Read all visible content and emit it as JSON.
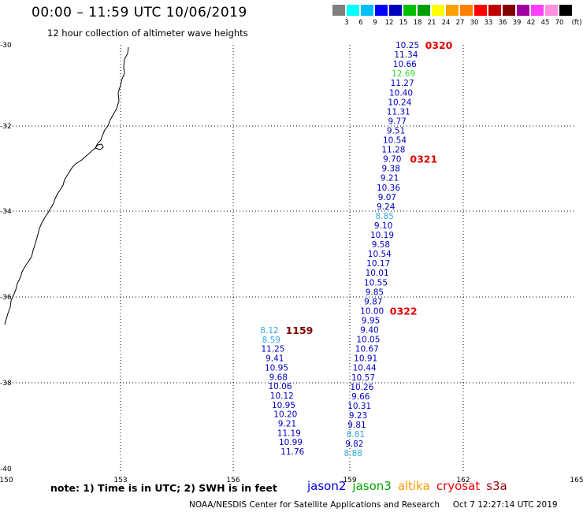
{
  "header": {
    "title": "00:00 – 11:59 UTC 10/06/2019",
    "subtitle": "12 hour collection of altimeter wave heights"
  },
  "legend": {
    "unit": "(ft)",
    "colors": [
      "#808080",
      "#00ffff",
      "#00bfff",
      "#0000ff",
      "#0000c0",
      "#00c000",
      "#00a000",
      "#ffff00",
      "#ffa000",
      "#ff8000",
      "#ff0000",
      "#c00000",
      "#800000",
      "#a000a0",
      "#ff40ff",
      "#ff90e0",
      "#000000"
    ],
    "labels": [
      "3",
      "6",
      "9",
      "12",
      "15",
      "18",
      "21",
      "24",
      "27",
      "30",
      "33",
      "36",
      "39",
      "42",
      "45",
      "70"
    ]
  },
  "axes": {
    "y_labels": [
      "-30",
      "-32",
      "-34",
      "-36",
      "-38",
      "-40"
    ],
    "x_labels": [
      "150",
      "153",
      "156",
      "159",
      "162",
      "165"
    ]
  },
  "tracks": [
    {
      "values": [
        {
          "v": "10.25",
          "c": "#0000c0"
        },
        {
          "v": "11.34",
          "c": "#0000c0"
        },
        {
          "v": "10.66",
          "c": "#0000c0"
        },
        {
          "v": "12.69",
          "c": "#33dd33"
        },
        {
          "v": "11.27",
          "c": "#0000c0"
        },
        {
          "v": "10.40",
          "c": "#0000c0"
        },
        {
          "v": "10.24",
          "c": "#0000c0"
        },
        {
          "v": "11.31",
          "c": "#0000c0"
        },
        {
          "v": "9.77",
          "c": "#0000c0"
        },
        {
          "v": "9.51",
          "c": "#0000c0"
        },
        {
          "v": "10.54",
          "c": "#0000c0"
        },
        {
          "v": "11.28",
          "c": "#0000c0"
        },
        {
          "v": "9.70",
          "c": "#0000c0"
        },
        {
          "v": "9.38",
          "c": "#0000c0"
        },
        {
          "v": "9.21",
          "c": "#0000c0"
        },
        {
          "v": "10.36",
          "c": "#0000c0"
        },
        {
          "v": "9.07",
          "c": "#0000c0"
        },
        {
          "v": "9.24",
          "c": "#0000c0"
        },
        {
          "v": "8.85",
          "c": "#33aadd"
        },
        {
          "v": "9.10",
          "c": "#0000c0"
        },
        {
          "v": "10.19",
          "c": "#0000c0"
        },
        {
          "v": "9.58",
          "c": "#0000c0"
        },
        {
          "v": "10.54",
          "c": "#0000c0"
        },
        {
          "v": "10.17",
          "c": "#0000c0"
        },
        {
          "v": "10.01",
          "c": "#0000c0"
        },
        {
          "v": "10.55",
          "c": "#0000c0"
        },
        {
          "v": "9.85",
          "c": "#0000c0"
        },
        {
          "v": "9.87",
          "c": "#0000c0"
        },
        {
          "v": "10.00",
          "c": "#0000c0"
        },
        {
          "v": "9.95",
          "c": "#0000c0"
        },
        {
          "v": "9.40",
          "c": "#0000c0"
        },
        {
          "v": "10.05",
          "c": "#0000c0"
        },
        {
          "v": "10.67",
          "c": "#0000c0"
        },
        {
          "v": "10.91",
          "c": "#0000c0"
        },
        {
          "v": "10.44",
          "c": "#0000c0"
        },
        {
          "v": "10.57",
          "c": "#0000c0"
        },
        {
          "v": "10.26",
          "c": "#0000c0"
        },
        {
          "v": "9.66",
          "c": "#0000c0"
        },
        {
          "v": "10.31",
          "c": "#0000c0"
        },
        {
          "v": "9.23",
          "c": "#0000c0"
        },
        {
          "v": "9.81",
          "c": "#0000c0"
        },
        {
          "v": "8.81",
          "c": "#33aadd"
        },
        {
          "v": "9.82",
          "c": "#0000c0"
        },
        {
          "v": "8.88",
          "c": "#33aadd"
        }
      ],
      "times": [
        {
          "t": "0320",
          "c": "#e00000",
          "row": 0
        },
        {
          "t": "0321",
          "c": "#e00000",
          "row": 12
        },
        {
          "t": "0322",
          "c": "#e00000",
          "row": 28
        }
      ]
    },
    {
      "values": [
        {
          "v": "8.12",
          "c": "#33aadd"
        },
        {
          "v": "8.59",
          "c": "#33aadd"
        },
        {
          "v": "11.25",
          "c": "#0000c0"
        },
        {
          "v": "9.41",
          "c": "#0000c0"
        },
        {
          "v": "10.95",
          "c": "#0000c0"
        },
        {
          "v": "9.68",
          "c": "#0000c0"
        },
        {
          "v": "10.06",
          "c": "#0000c0"
        },
        {
          "v": "10.12",
          "c": "#0000c0"
        },
        {
          "v": "10.95",
          "c": "#0000c0"
        },
        {
          "v": "10.20",
          "c": "#0000c0"
        },
        {
          "v": "9.21",
          "c": "#0000c0"
        },
        {
          "v": "11.19",
          "c": "#0000c0"
        },
        {
          "v": "10.99",
          "c": "#0000c0"
        },
        {
          "v": "11.76",
          "c": "#0000c0"
        }
      ],
      "times": [
        {
          "t": "1159",
          "c": "#800000",
          "row": 0
        }
      ]
    }
  ],
  "footer": {
    "note": "note:  1) Time is in UTC;  2) SWH is in feet",
    "satellites": [
      {
        "name": "jason2",
        "color": "#0000dd"
      },
      {
        "name": "jason3",
        "color": "#00aa00"
      },
      {
        "name": "altika",
        "color": "#ff9900"
      },
      {
        "name": "cryosat",
        "color": "#ee0000"
      },
      {
        "name": "s3a",
        "color": "#990000"
      }
    ],
    "credit": "NOAA/NESDIS Center for Satellite Applications and Research",
    "timestamp": "Oct  7 12:27:14 UTC 2019"
  }
}
